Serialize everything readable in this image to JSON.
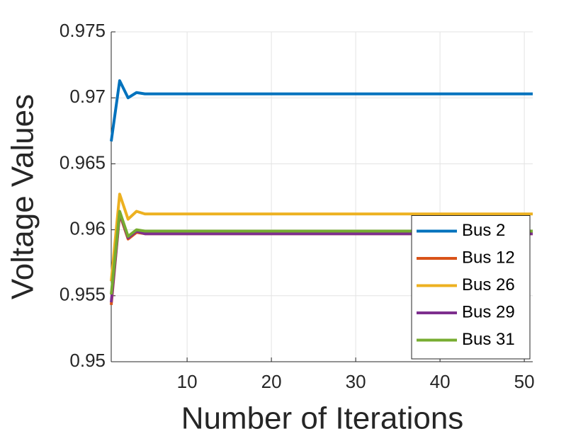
{
  "chart_data": {
    "type": "line",
    "xlabel": "Number of Iterations",
    "ylabel": "Voltage Values",
    "x": [
      1,
      2,
      3,
      4,
      5,
      6,
      7,
      8,
      9,
      10,
      11,
      12,
      13,
      14,
      15,
      16,
      17,
      18,
      19,
      20,
      21,
      22,
      23,
      24,
      25,
      26,
      27,
      28,
      29,
      30,
      31,
      32,
      33,
      34,
      35,
      36,
      37,
      38,
      39,
      40,
      41,
      42,
      43,
      44,
      45,
      46,
      47,
      48,
      49,
      50,
      51
    ],
    "xlim": [
      1,
      51
    ],
    "xticks": [
      10,
      20,
      30,
      40,
      50
    ],
    "ylim": [
      0.95,
      0.975
    ],
    "yticks": [
      0.95,
      0.955,
      0.96,
      0.965,
      0.97,
      0.975
    ],
    "grid": true,
    "legend": "lower right",
    "series": [
      {
        "name": "Bus 2",
        "color": "#0072BD",
        "values": [
          0.9667,
          0.9713,
          0.97,
          0.9704,
          0.9703,
          0.9703,
          0.9703,
          0.9703,
          0.9703,
          0.9703,
          0.9703,
          0.9703,
          0.9703,
          0.9703,
          0.9703,
          0.9703,
          0.9703,
          0.9703,
          0.9703,
          0.9703,
          0.9703,
          0.9703,
          0.9703,
          0.9703,
          0.9703,
          0.9703,
          0.9703,
          0.9703,
          0.9703,
          0.9703,
          0.9703,
          0.9703,
          0.9703,
          0.9703,
          0.9703,
          0.9703,
          0.9703,
          0.9703,
          0.9703,
          0.9703,
          0.9703,
          0.9703,
          0.9703,
          0.9703,
          0.9703,
          0.9703,
          0.9703,
          0.9703,
          0.9703,
          0.9703,
          0.9703
        ]
      },
      {
        "name": "Bus 12",
        "color": "#D95319",
        "values": [
          0.9543,
          0.9612,
          0.9593,
          0.9598,
          0.9597,
          0.9597,
          0.9597,
          0.9597,
          0.9597,
          0.9597,
          0.9597,
          0.9597,
          0.9597,
          0.9597,
          0.9597,
          0.9597,
          0.9597,
          0.9597,
          0.9597,
          0.9597,
          0.9597,
          0.9597,
          0.9597,
          0.9597,
          0.9597,
          0.9597,
          0.9597,
          0.9597,
          0.9597,
          0.9597,
          0.9597,
          0.9597,
          0.9597,
          0.9597,
          0.9597,
          0.9597,
          0.9597,
          0.9597,
          0.9597,
          0.9597,
          0.9597,
          0.9597,
          0.9597,
          0.9597,
          0.9597,
          0.9597,
          0.9597,
          0.9597,
          0.9597,
          0.9597,
          0.9597
        ]
      },
      {
        "name": "Bus 26",
        "color": "#EDB120",
        "values": [
          0.9561,
          0.9627,
          0.9608,
          0.9614,
          0.9612,
          0.9612,
          0.9612,
          0.9612,
          0.9612,
          0.9612,
          0.9612,
          0.9612,
          0.9612,
          0.9612,
          0.9612,
          0.9612,
          0.9612,
          0.9612,
          0.9612,
          0.9612,
          0.9612,
          0.9612,
          0.9612,
          0.9612,
          0.9612,
          0.9612,
          0.9612,
          0.9612,
          0.9612,
          0.9612,
          0.9612,
          0.9612,
          0.9612,
          0.9612,
          0.9612,
          0.9612,
          0.9612,
          0.9612,
          0.9612,
          0.9612,
          0.9612,
          0.9612,
          0.9612,
          0.9612,
          0.9612,
          0.9612,
          0.9612,
          0.9612,
          0.9612,
          0.9612,
          0.9612
        ]
      },
      {
        "name": "Bus 29",
        "color": "#7E2F8E",
        "values": [
          0.9545,
          0.9613,
          0.9594,
          0.9599,
          0.9597,
          0.9597,
          0.9597,
          0.9597,
          0.9597,
          0.9597,
          0.9597,
          0.9597,
          0.9597,
          0.9597,
          0.9597,
          0.9597,
          0.9597,
          0.9597,
          0.9597,
          0.9597,
          0.9597,
          0.9597,
          0.9597,
          0.9597,
          0.9597,
          0.9597,
          0.9597,
          0.9597,
          0.9597,
          0.9597,
          0.9597,
          0.9597,
          0.9597,
          0.9597,
          0.9597,
          0.9597,
          0.9597,
          0.9597,
          0.9597,
          0.9597,
          0.9597,
          0.9597,
          0.9597,
          0.9597,
          0.9597,
          0.9597,
          0.9597,
          0.9597,
          0.9597,
          0.9597,
          0.9597
        ]
      },
      {
        "name": "Bus 31",
        "color": "#77AC30",
        "values": [
          0.9551,
          0.9614,
          0.9595,
          0.96,
          0.9599,
          0.9599,
          0.9599,
          0.9599,
          0.9599,
          0.9599,
          0.9599,
          0.9599,
          0.9599,
          0.9599,
          0.9599,
          0.9599,
          0.9599,
          0.9599,
          0.9599,
          0.9599,
          0.9599,
          0.9599,
          0.9599,
          0.9599,
          0.9599,
          0.9599,
          0.9599,
          0.9599,
          0.9599,
          0.9599,
          0.9599,
          0.9599,
          0.9599,
          0.9599,
          0.9599,
          0.9599,
          0.9599,
          0.9599,
          0.9599,
          0.9599,
          0.9599,
          0.9599,
          0.9599,
          0.9599,
          0.9599,
          0.9599,
          0.9599,
          0.9599,
          0.9599,
          0.9599,
          0.9599
        ]
      }
    ]
  }
}
